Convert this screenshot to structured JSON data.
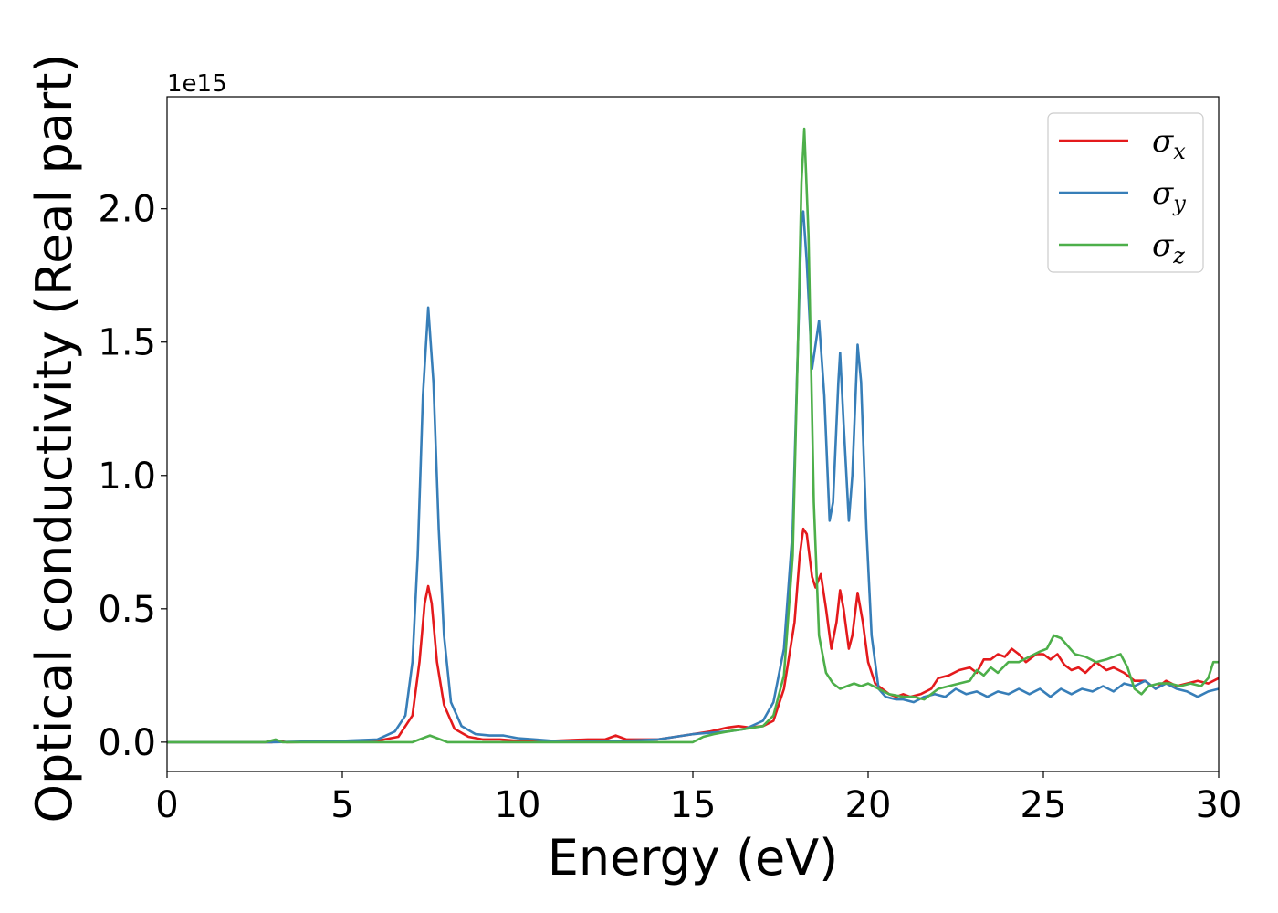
{
  "chart_data": {
    "type": "line",
    "xlabel": "Energy (eV)",
    "ylabel": "Optical conductivity (Real part)",
    "y_offset_label": "1e15",
    "xlim": [
      0,
      30
    ],
    "ylim": [
      -0.11,
      2.42
    ],
    "x_ticks": [
      0,
      5,
      10,
      15,
      20,
      25,
      30
    ],
    "x_tick_labels": [
      "0",
      "5",
      "10",
      "15",
      "20",
      "25",
      "30"
    ],
    "y_ticks": [
      0.0,
      0.5,
      1.0,
      1.5,
      2.0
    ],
    "y_tick_labels": [
      "0.0",
      "0.5",
      "1.0",
      "1.5",
      "2.0"
    ],
    "grid": false,
    "legend_position": "top-right",
    "colors": {
      "x": "#e41a1c",
      "y": "#377eb8",
      "z": "#4daf4a"
    },
    "series": [
      {
        "key": "x",
        "legend_symbol": "σ",
        "legend_sub": "x",
        "color": "#e41a1c",
        "points": [
          [
            0,
            0.0
          ],
          [
            3.0,
            0.0
          ],
          [
            3.2,
            0.005
          ],
          [
            3.4,
            0.0
          ],
          [
            6.0,
            0.005
          ],
          [
            6.6,
            0.02
          ],
          [
            7.0,
            0.1
          ],
          [
            7.2,
            0.3
          ],
          [
            7.35,
            0.52
          ],
          [
            7.45,
            0.585
          ],
          [
            7.55,
            0.52
          ],
          [
            7.7,
            0.3
          ],
          [
            7.9,
            0.14
          ],
          [
            8.2,
            0.05
          ],
          [
            8.6,
            0.02
          ],
          [
            9.0,
            0.01
          ],
          [
            9.5,
            0.01
          ],
          [
            10.0,
            0.005
          ],
          [
            11.0,
            0.005
          ],
          [
            12.0,
            0.01
          ],
          [
            12.5,
            0.01
          ],
          [
            12.8,
            0.025
          ],
          [
            13.1,
            0.01
          ],
          [
            14.0,
            0.01
          ],
          [
            14.5,
            0.02
          ],
          [
            15.0,
            0.03
          ],
          [
            15.5,
            0.04
          ],
          [
            16.0,
            0.055
          ],
          [
            16.3,
            0.06
          ],
          [
            16.6,
            0.055
          ],
          [
            17.0,
            0.06
          ],
          [
            17.3,
            0.08
          ],
          [
            17.6,
            0.2
          ],
          [
            17.9,
            0.45
          ],
          [
            18.05,
            0.7
          ],
          [
            18.15,
            0.8
          ],
          [
            18.25,
            0.78
          ],
          [
            18.4,
            0.62
          ],
          [
            18.5,
            0.58
          ],
          [
            18.65,
            0.63
          ],
          [
            18.8,
            0.5
          ],
          [
            18.95,
            0.35
          ],
          [
            19.1,
            0.45
          ],
          [
            19.2,
            0.57
          ],
          [
            19.3,
            0.5
          ],
          [
            19.45,
            0.35
          ],
          [
            19.55,
            0.4
          ],
          [
            19.7,
            0.56
          ],
          [
            19.85,
            0.45
          ],
          [
            20.0,
            0.3
          ],
          [
            20.2,
            0.22
          ],
          [
            20.4,
            0.2
          ],
          [
            20.6,
            0.18
          ],
          [
            20.8,
            0.17
          ],
          [
            21.0,
            0.18
          ],
          [
            21.2,
            0.17
          ],
          [
            21.5,
            0.18
          ],
          [
            21.8,
            0.2
          ],
          [
            22.0,
            0.24
          ],
          [
            22.3,
            0.25
          ],
          [
            22.6,
            0.27
          ],
          [
            22.9,
            0.28
          ],
          [
            23.1,
            0.26
          ],
          [
            23.3,
            0.31
          ],
          [
            23.5,
            0.31
          ],
          [
            23.7,
            0.33
          ],
          [
            23.9,
            0.32
          ],
          [
            24.1,
            0.35
          ],
          [
            24.3,
            0.33
          ],
          [
            24.5,
            0.3
          ],
          [
            24.8,
            0.33
          ],
          [
            25.0,
            0.33
          ],
          [
            25.2,
            0.31
          ],
          [
            25.4,
            0.33
          ],
          [
            25.6,
            0.29
          ],
          [
            25.8,
            0.27
          ],
          [
            26.0,
            0.28
          ],
          [
            26.2,
            0.26
          ],
          [
            26.5,
            0.3
          ],
          [
            26.8,
            0.27
          ],
          [
            27.0,
            0.28
          ],
          [
            27.3,
            0.26
          ],
          [
            27.6,
            0.23
          ],
          [
            27.9,
            0.23
          ],
          [
            28.2,
            0.2
          ],
          [
            28.5,
            0.23
          ],
          [
            28.8,
            0.21
          ],
          [
            29.1,
            0.22
          ],
          [
            29.4,
            0.23
          ],
          [
            29.7,
            0.22
          ],
          [
            30.0,
            0.24
          ]
        ]
      },
      {
        "key": "y",
        "legend_symbol": "σ",
        "legend_sub": "y",
        "color": "#377eb8",
        "points": [
          [
            0,
            0.0
          ],
          [
            3.0,
            0.0
          ],
          [
            5.0,
            0.005
          ],
          [
            6.0,
            0.01
          ],
          [
            6.5,
            0.04
          ],
          [
            6.8,
            0.1
          ],
          [
            7.0,
            0.3
          ],
          [
            7.15,
            0.7
          ],
          [
            7.3,
            1.3
          ],
          [
            7.45,
            1.63
          ],
          [
            7.6,
            1.35
          ],
          [
            7.75,
            0.8
          ],
          [
            7.9,
            0.4
          ],
          [
            8.1,
            0.15
          ],
          [
            8.4,
            0.06
          ],
          [
            8.8,
            0.03
          ],
          [
            9.2,
            0.025
          ],
          [
            9.6,
            0.025
          ],
          [
            10.0,
            0.015
          ],
          [
            10.5,
            0.01
          ],
          [
            11.0,
            0.005
          ],
          [
            12.0,
            0.005
          ],
          [
            13.0,
            0.005
          ],
          [
            14.0,
            0.01
          ],
          [
            14.5,
            0.02
          ],
          [
            15.0,
            0.03
          ],
          [
            15.5,
            0.035
          ],
          [
            16.0,
            0.04
          ],
          [
            16.5,
            0.05
          ],
          [
            17.0,
            0.08
          ],
          [
            17.3,
            0.15
          ],
          [
            17.6,
            0.35
          ],
          [
            17.85,
            0.8
          ],
          [
            18.0,
            1.5
          ],
          [
            18.1,
            1.95
          ],
          [
            18.15,
            1.99
          ],
          [
            18.25,
            1.8
          ],
          [
            18.4,
            1.4
          ],
          [
            18.6,
            1.58
          ],
          [
            18.75,
            1.3
          ],
          [
            18.9,
            0.83
          ],
          [
            19.0,
            0.9
          ],
          [
            19.15,
            1.35
          ],
          [
            19.2,
            1.46
          ],
          [
            19.3,
            1.2
          ],
          [
            19.45,
            0.83
          ],
          [
            19.55,
            1.0
          ],
          [
            19.7,
            1.49
          ],
          [
            19.8,
            1.35
          ],
          [
            19.95,
            0.8
          ],
          [
            20.1,
            0.4
          ],
          [
            20.3,
            0.2
          ],
          [
            20.5,
            0.17
          ],
          [
            20.8,
            0.16
          ],
          [
            21.0,
            0.16
          ],
          [
            21.3,
            0.15
          ],
          [
            21.6,
            0.17
          ],
          [
            21.9,
            0.18
          ],
          [
            22.2,
            0.17
          ],
          [
            22.5,
            0.2
          ],
          [
            22.8,
            0.18
          ],
          [
            23.1,
            0.19
          ],
          [
            23.4,
            0.17
          ],
          [
            23.7,
            0.19
          ],
          [
            24.0,
            0.18
          ],
          [
            24.3,
            0.2
          ],
          [
            24.6,
            0.18
          ],
          [
            24.9,
            0.2
          ],
          [
            25.2,
            0.17
          ],
          [
            25.5,
            0.2
          ],
          [
            25.8,
            0.18
          ],
          [
            26.1,
            0.2
          ],
          [
            26.4,
            0.19
          ],
          [
            26.7,
            0.21
          ],
          [
            27.0,
            0.19
          ],
          [
            27.3,
            0.22
          ],
          [
            27.6,
            0.21
          ],
          [
            27.9,
            0.23
          ],
          [
            28.2,
            0.2
          ],
          [
            28.5,
            0.22
          ],
          [
            28.8,
            0.2
          ],
          [
            29.1,
            0.19
          ],
          [
            29.4,
            0.17
          ],
          [
            29.7,
            0.19
          ],
          [
            30.0,
            0.2
          ]
        ]
      },
      {
        "key": "z",
        "legend_symbol": "σ",
        "legend_sub": "z",
        "color": "#4daf4a",
        "points": [
          [
            0,
            0.0
          ],
          [
            2.8,
            0.0
          ],
          [
            3.1,
            0.01
          ],
          [
            3.3,
            0.0
          ],
          [
            7.0,
            0.0
          ],
          [
            7.3,
            0.015
          ],
          [
            7.5,
            0.025
          ],
          [
            7.7,
            0.015
          ],
          [
            8.0,
            0.0
          ],
          [
            15.0,
            0.0
          ],
          [
            15.3,
            0.02
          ],
          [
            15.6,
            0.03
          ],
          [
            16.0,
            0.04
          ],
          [
            16.5,
            0.05
          ],
          [
            17.0,
            0.06
          ],
          [
            17.3,
            0.1
          ],
          [
            17.6,
            0.25
          ],
          [
            17.85,
            0.7
          ],
          [
            18.0,
            1.5
          ],
          [
            18.1,
            2.1
          ],
          [
            18.18,
            2.3
          ],
          [
            18.3,
            1.9
          ],
          [
            18.45,
            0.9
          ],
          [
            18.6,
            0.4
          ],
          [
            18.8,
            0.26
          ],
          [
            19.0,
            0.22
          ],
          [
            19.2,
            0.2
          ],
          [
            19.4,
            0.21
          ],
          [
            19.6,
            0.22
          ],
          [
            19.8,
            0.21
          ],
          [
            20.0,
            0.22
          ],
          [
            20.3,
            0.2
          ],
          [
            20.6,
            0.18
          ],
          [
            21.0,
            0.17
          ],
          [
            21.3,
            0.17
          ],
          [
            21.6,
            0.16
          ],
          [
            22.0,
            0.2
          ],
          [
            22.3,
            0.21
          ],
          [
            22.6,
            0.22
          ],
          [
            22.9,
            0.23
          ],
          [
            23.1,
            0.27
          ],
          [
            23.3,
            0.25
          ],
          [
            23.5,
            0.28
          ],
          [
            23.7,
            0.26
          ],
          [
            24.0,
            0.3
          ],
          [
            24.3,
            0.3
          ],
          [
            24.6,
            0.32
          ],
          [
            24.9,
            0.34
          ],
          [
            25.1,
            0.35
          ],
          [
            25.3,
            0.4
          ],
          [
            25.5,
            0.39
          ],
          [
            25.7,
            0.36
          ],
          [
            25.9,
            0.33
          ],
          [
            26.2,
            0.32
          ],
          [
            26.5,
            0.3
          ],
          [
            26.8,
            0.31
          ],
          [
            27.0,
            0.32
          ],
          [
            27.2,
            0.33
          ],
          [
            27.4,
            0.28
          ],
          [
            27.6,
            0.2
          ],
          [
            27.8,
            0.18
          ],
          [
            28.0,
            0.21
          ],
          [
            28.3,
            0.22
          ],
          [
            28.6,
            0.22
          ],
          [
            28.9,
            0.21
          ],
          [
            29.2,
            0.22
          ],
          [
            29.5,
            0.21
          ],
          [
            29.7,
            0.24
          ],
          [
            29.85,
            0.3
          ],
          [
            30.0,
            0.3
          ]
        ]
      }
    ]
  }
}
